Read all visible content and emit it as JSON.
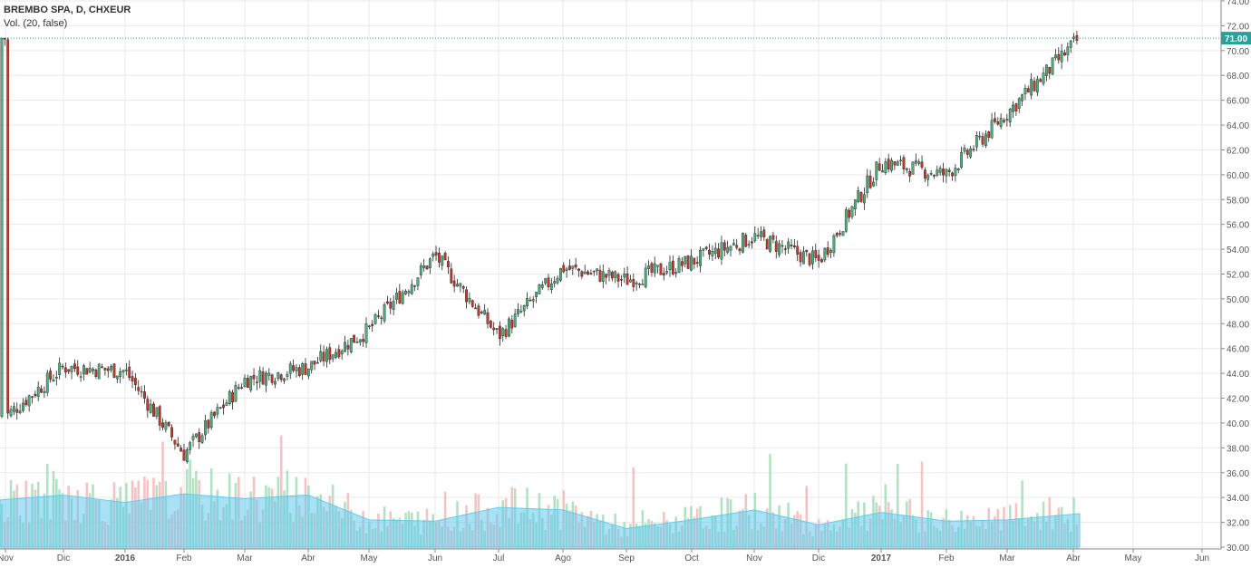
{
  "legend": {
    "symbol_line": "BREMBO SPA, D, CHXEUR",
    "volume_line": "Vol. (20, false)"
  },
  "price_tag": "71.00",
  "colors": {
    "up": "#4caf7d",
    "down": "#c0392b",
    "wick": "#222222",
    "volume_up": "#a5dcb8",
    "volume_down": "#f2b8b8",
    "volume_area": "#62cbef",
    "price_line": "#2aa198",
    "grid": "#e9e9e9",
    "axis_text": "#555555"
  },
  "chart_data": {
    "type": "candlestick",
    "title": "BREMBO SPA, D, CHXEUR",
    "indicator": "Vol. (20, false)",
    "x_axis_labels": [
      "Nov",
      "Dic",
      "2016",
      "Feb",
      "Mar",
      "Abr",
      "May",
      "Jun",
      "Jul",
      "Ago",
      "Sep",
      "Oct",
      "Nov",
      "Dic",
      "2017",
      "Feb",
      "Mar",
      "Abr",
      "May",
      "Jun"
    ],
    "bold_x_labels": [
      "2016",
      "2017"
    ],
    "y_axis_labels": [
      "30.00",
      "32.00",
      "34.00",
      "36.00",
      "38.00",
      "40.00",
      "42.00",
      "44.00",
      "46.00",
      "48.00",
      "50.00",
      "52.00",
      "54.00",
      "56.00",
      "58.00",
      "60.00",
      "62.00",
      "64.00",
      "66.00",
      "68.00",
      "70.00",
      "72.00",
      "74.00"
    ],
    "ylim": [
      30,
      74
    ],
    "last_price": 71.0,
    "grid": true,
    "close_path": [
      {
        "x": "Nov",
        "y": 40.5
      },
      {
        "x": "Dic",
        "y": 44.5
      },
      {
        "x": "2016",
        "y": 44.2
      },
      {
        "x": "Feb",
        "y": 37.5
      },
      {
        "x": "Mar",
        "y": 43.5
      },
      {
        "x": "Abr",
        "y": 44.5
      },
      {
        "x": "May",
        "y": 47.5
      },
      {
        "x": "Jun",
        "y": 53.5
      },
      {
        "x": "Jul",
        "y": 47.0
      },
      {
        "x": "Ago",
        "y": 52.5
      },
      {
        "x": "Sep",
        "y": 51.5
      },
      {
        "x": "Oct",
        "y": 53.0
      },
      {
        "x": "Nov",
        "y": 55.0
      },
      {
        "x": "Dic",
        "y": 53.0
      },
      {
        "x": "2017",
        "y": 61.0
      },
      {
        "x": "Feb",
        "y": 60.0
      },
      {
        "x": "Mar",
        "y": 65.0
      },
      {
        "x": "Abr",
        "y": 71.0
      }
    ],
    "volume_avg_path": [
      {
        "x": "Nov",
        "y": 33.8
      },
      {
        "x": "Dic",
        "y": 34.2
      },
      {
        "x": "2016",
        "y": 33.6
      },
      {
        "x": "Feb",
        "y": 34.3
      },
      {
        "x": "Mar",
        "y": 33.9
      },
      {
        "x": "Abr",
        "y": 34.2
      },
      {
        "x": "May",
        "y": 32.2
      },
      {
        "x": "Jun",
        "y": 32.1
      },
      {
        "x": "Jul",
        "y": 33.2
      },
      {
        "x": "Ago",
        "y": 33.0
      },
      {
        "x": "Sep",
        "y": 31.5
      },
      {
        "x": "Oct",
        "y": 32.2
      },
      {
        "x": "Nov",
        "y": 33.0
      },
      {
        "x": "Dic",
        "y": 31.8
      },
      {
        "x": "2017",
        "y": 32.8
      },
      {
        "x": "Feb",
        "y": 32.1
      },
      {
        "x": "Mar",
        "y": 32.2
      },
      {
        "x": "Abr",
        "y": 32.7
      }
    ]
  }
}
